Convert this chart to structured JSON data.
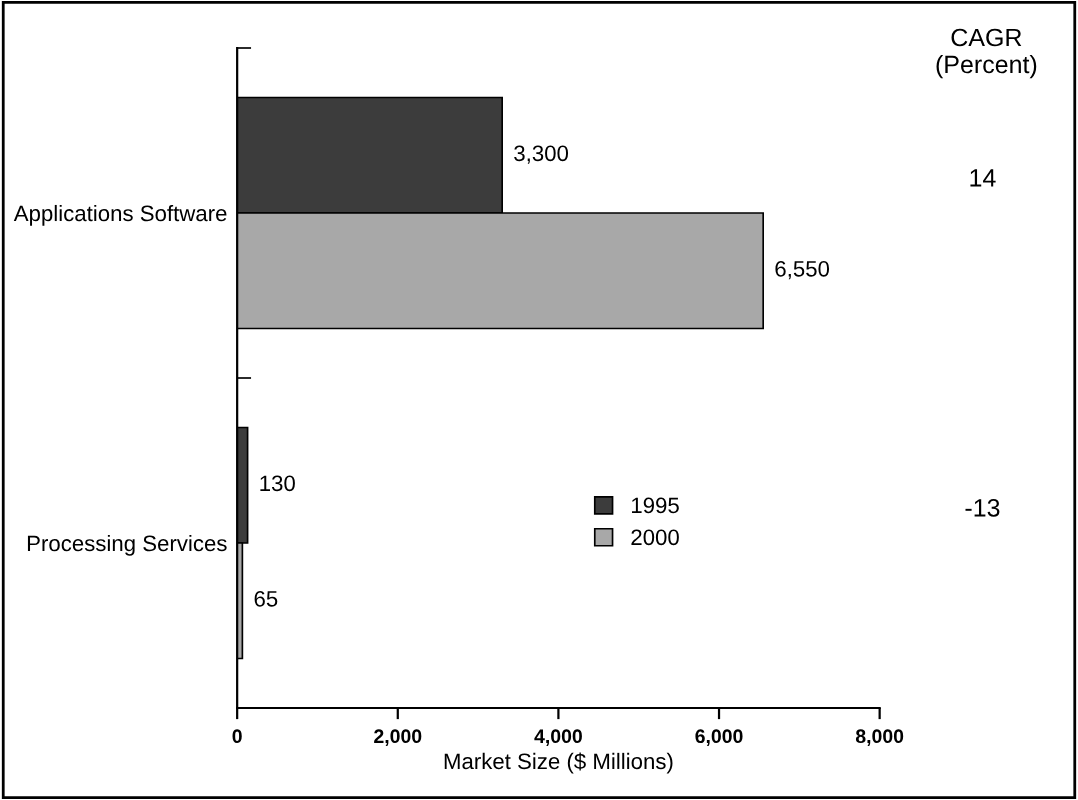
{
  "chart_data": {
    "type": "bar",
    "orientation": "horizontal",
    "xlabel": "Market Size ($ Millions)",
    "categories": [
      "Applications Software",
      "Processing Services"
    ],
    "series": [
      {
        "name": "1995",
        "color": "#3c3c3c",
        "values": [
          3300,
          130
        ],
        "value_labels": [
          "3,300",
          "130"
        ]
      },
      {
        "name": "2000",
        "color": "#a8a8a8",
        "values": [
          6550,
          65
        ],
        "value_labels": [
          "6,550",
          "65"
        ]
      }
    ],
    "xlim": [
      0,
      8000
    ],
    "xticks": [
      0,
      {
        "value": 2000,
        "label": "2,000"
      },
      {
        "value": 4000,
        "label": "4,000"
      },
      {
        "value": 6000,
        "label": "6,000"
      },
      {
        "value": 8000,
        "label": "8,000"
      }
    ],
    "annotations": [
      "CAGR\n(Percent)",
      "14",
      "-13"
    ],
    "legend": "right",
    "grid": false
  }
}
